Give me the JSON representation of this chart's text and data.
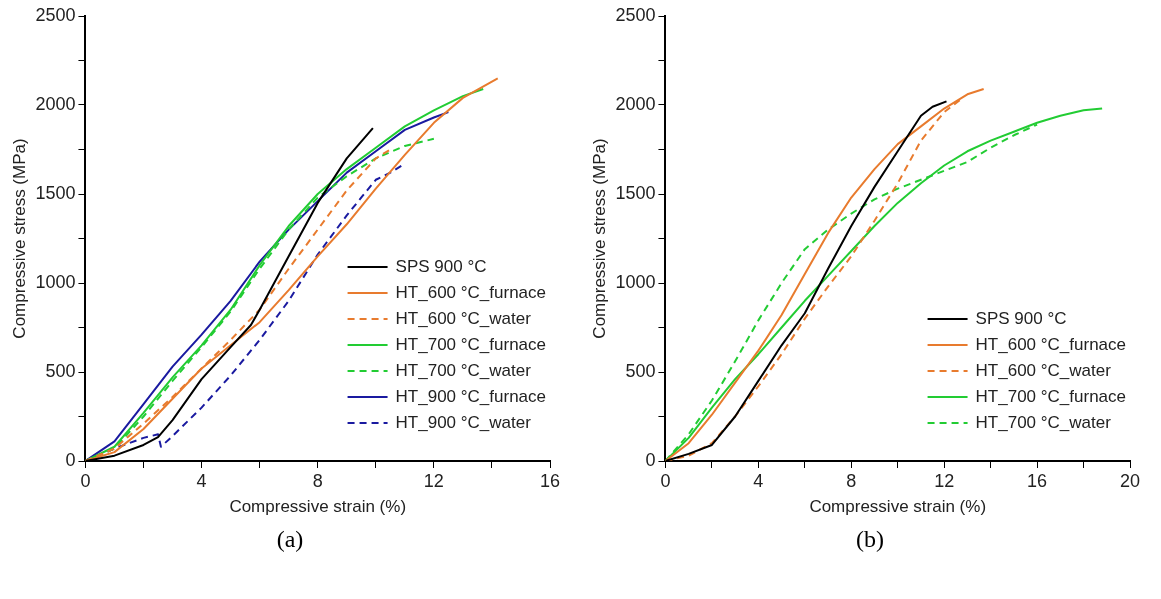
{
  "chart_data": [
    {
      "type": "line",
      "xlabel": "Compressive strain (%)",
      "ylabel": "Compressive stress (MPa)",
      "xlim": [
        0,
        16
      ],
      "ylim": [
        0,
        2500
      ],
      "xticks": [
        0,
        {
          "value": 2,
          "label": null
        },
        4,
        {
          "value": 6,
          "label": null
        },
        8,
        {
          "value": 10,
          "label": null
        },
        12,
        {
          "value": 14,
          "label": null
        },
        16
      ],
      "yticks": [
        0,
        {
          "value": 250,
          "label": null
        },
        500,
        {
          "value": 750,
          "label": null
        },
        1000,
        {
          "value": 1250,
          "label": null
        },
        1500,
        {
          "value": 1750,
          "label": null
        },
        2000,
        {
          "value": 2250,
          "label": null
        },
        2500
      ],
      "grid": false,
      "legend": "bottom right",
      "annotations": [
        "(a)"
      ],
      "series": [
        {
          "name": "SPS 900 °C",
          "color": "#000000",
          "line_style": "solid",
          "x": [
            0,
            1,
            2,
            2.5,
            3,
            4,
            5,
            5.7,
            6,
            7,
            8,
            9,
            9.9
          ],
          "values": [
            0,
            30,
            90,
            134,
            230,
            460,
            640,
            764,
            850,
            1150,
            1450,
            1700,
            1870
          ]
        },
        {
          "name": "HT_600 °C_furnace",
          "color": "#e87b2e",
          "line_style": "solid",
          "x": [
            0,
            1,
            2,
            3,
            4,
            5,
            6,
            7,
            8,
            9,
            10,
            11,
            12,
            13,
            14.2
          ],
          "values": [
            0,
            50,
            180,
            350,
            520,
            650,
            780,
            960,
            1150,
            1330,
            1530,
            1720,
            1900,
            2040,
            2150
          ]
        },
        {
          "name": "HT_600 °C_water",
          "color": "#e87b2e",
          "line_style": "dashed",
          "x": [
            0,
            1,
            2,
            3,
            4,
            5,
            6,
            7,
            8,
            9,
            10,
            10.5
          ],
          "values": [
            0,
            70,
            210,
            360,
            520,
            680,
            850,
            1080,
            1300,
            1520,
            1700,
            1750
          ]
        },
        {
          "name": "HT_700 °C_furnace",
          "color": "#22cc33",
          "line_style": "solid",
          "x": [
            0,
            1,
            2,
            3,
            4,
            5,
            6,
            7,
            8,
            9,
            10,
            11,
            12,
            13,
            13.7
          ],
          "values": [
            0,
            80,
            270,
            470,
            650,
            850,
            1100,
            1320,
            1500,
            1640,
            1760,
            1880,
            1970,
            2050,
            2090
          ]
        },
        {
          "name": "HT_700 °C_water",
          "color": "#22cc33",
          "line_style": "dashed",
          "x": [
            0,
            1,
            2,
            3,
            4,
            5,
            6,
            7,
            8,
            9,
            9.5,
            10,
            11,
            12
          ],
          "values": [
            0,
            70,
            250,
            450,
            640,
            840,
            1080,
            1300,
            1480,
            1600,
            1650,
            1700,
            1770,
            1810
          ]
        },
        {
          "name": "HT_900 °C_furnace",
          "color": "#1a1aa0",
          "line_style": "solid",
          "x": [
            0,
            1,
            2,
            3,
            4,
            5,
            6,
            7,
            8,
            9,
            10,
            11,
            12,
            12.5
          ],
          "values": [
            0,
            110,
            320,
            530,
            710,
            900,
            1120,
            1300,
            1460,
            1620,
            1740,
            1860,
            1930,
            1960
          ]
        },
        {
          "name": "HT_900 °C_water",
          "color": "#1a1aa0",
          "line_style": "dashed",
          "x": [
            0,
            1,
            2,
            2.5,
            2.6,
            3,
            4,
            5,
            6,
            7,
            8,
            9,
            10,
            10.5,
            11
          ],
          "values": [
            0,
            70,
            130,
            150,
            80,
            140,
            300,
            480,
            680,
            900,
            1160,
            1380,
            1580,
            1620,
            1670
          ]
        }
      ]
    },
    {
      "type": "line",
      "xlabel": "Compressive strain (%)",
      "ylabel": "Compressive stress (MPa)",
      "xlim": [
        0,
        20
      ],
      "ylim": [
        0,
        2500
      ],
      "xticks": [
        0,
        {
          "value": 2,
          "label": null
        },
        4,
        {
          "value": 6,
          "label": null
        },
        8,
        {
          "value": 10,
          "label": null
        },
        12,
        {
          "value": 14,
          "label": null
        },
        16,
        {
          "value": 18,
          "label": null
        },
        20
      ],
      "yticks": [
        0,
        {
          "value": 250,
          "label": null
        },
        500,
        {
          "value": 750,
          "label": null
        },
        1000,
        {
          "value": 1250,
          "label": null
        },
        1500,
        {
          "value": 1750,
          "label": null
        },
        2000,
        {
          "value": 2250,
          "label": null
        },
        2500
      ],
      "grid": false,
      "legend": "bottom right",
      "annotations": [
        "(b)"
      ],
      "series": [
        {
          "name": "SPS 900 °C",
          "color": "#000000",
          "line_style": "solid",
          "x": [
            0,
            1,
            2,
            3,
            4,
            5,
            6,
            7,
            8,
            9,
            10,
            11,
            11.5,
            12.1
          ],
          "values": [
            0,
            40,
            90,
            250,
            450,
            650,
            830,
            1080,
            1320,
            1540,
            1740,
            1940,
            1990,
            2020
          ]
        },
        {
          "name": "HT_600 °C_furnace",
          "color": "#e87b2e",
          "line_style": "solid",
          "x": [
            0,
            1,
            2,
            3,
            4,
            5,
            6,
            7,
            8,
            9,
            10,
            11,
            12,
            13,
            13.7
          ],
          "values": [
            0,
            100,
            260,
            440,
            620,
            820,
            1050,
            1280,
            1480,
            1640,
            1780,
            1880,
            1980,
            2060,
            2090
          ]
        },
        {
          "name": "HT_600 °C_water",
          "color": "#e87b2e",
          "line_style": "dashed",
          "x": [
            0,
            1,
            2,
            3,
            4,
            5,
            6,
            7,
            8,
            9,
            10,
            11,
            12,
            12.8
          ],
          "values": [
            0,
            30,
            100,
            250,
            420,
            600,
            800,
            980,
            1150,
            1350,
            1560,
            1800,
            1960,
            2040
          ]
        },
        {
          "name": "HT_700 °C_furnace",
          "color": "#22cc33",
          "line_style": "solid",
          "x": [
            0,
            1,
            2,
            3,
            4,
            5,
            6,
            7,
            8,
            9,
            10,
            11,
            12,
            13,
            14,
            15,
            16,
            17,
            18,
            18.8
          ],
          "values": [
            0,
            130,
            300,
            460,
            600,
            750,
            900,
            1040,
            1180,
            1320,
            1450,
            1560,
            1660,
            1740,
            1800,
            1850,
            1900,
            1940,
            1970,
            1980
          ]
        },
        {
          "name": "HT_700 °C_water",
          "color": "#22cc33",
          "line_style": "dashed",
          "x": [
            0,
            1,
            2,
            3,
            4,
            5,
            6,
            7,
            8,
            9,
            10,
            11,
            12,
            13,
            14,
            15,
            16
          ],
          "values": [
            0,
            150,
            340,
            560,
            790,
            1000,
            1190,
            1300,
            1390,
            1470,
            1530,
            1580,
            1630,
            1680,
            1760,
            1830,
            1890
          ]
        }
      ]
    }
  ]
}
